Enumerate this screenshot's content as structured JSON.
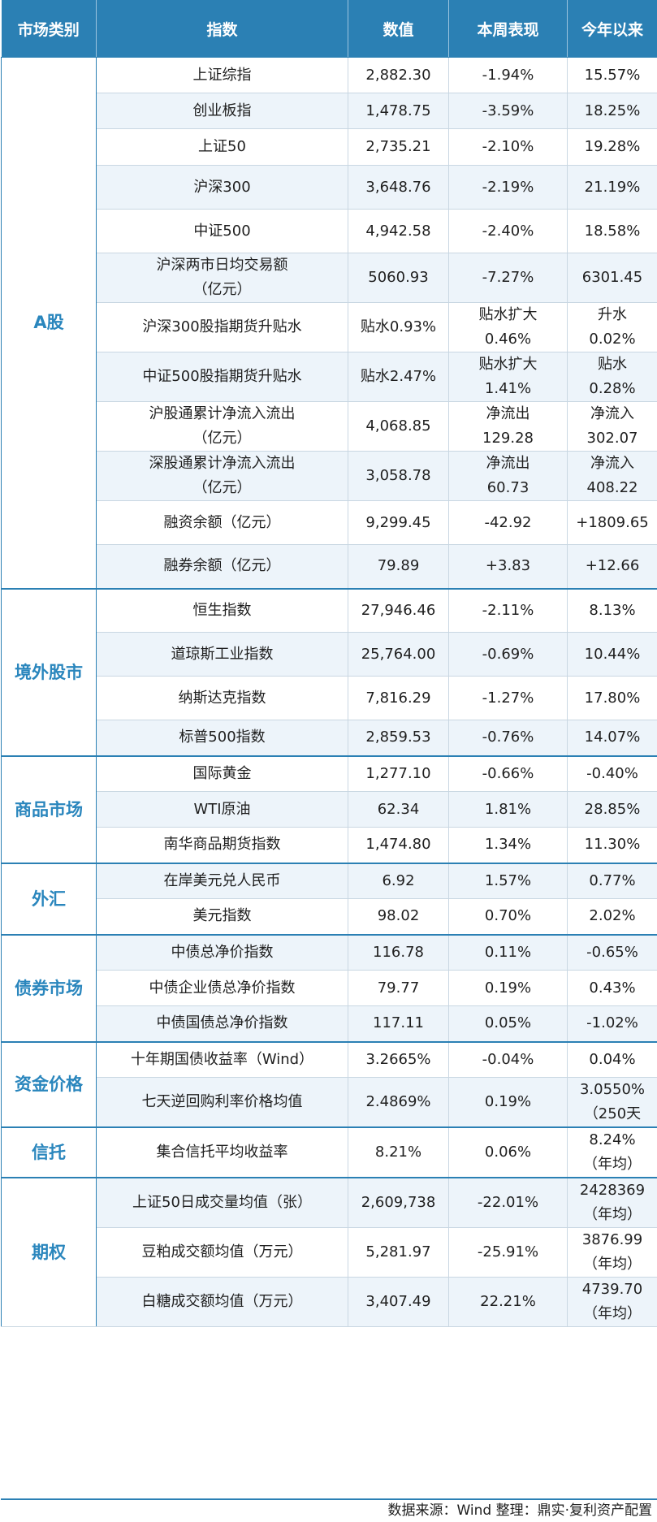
{
  "headers": [
    "市场类别",
    "指数",
    "数值",
    "本周表现",
    "今年以来"
  ],
  "groups": [
    {
      "category": "A股",
      "rows": [
        {
          "name": [
            "上证综指"
          ],
          "value": [
            "2,882.30"
          ],
          "week": [
            "-1.94%"
          ],
          "ytd": [
            "15.57%"
          ]
        },
        {
          "name": [
            "创业板指"
          ],
          "value": [
            "1,478.75"
          ],
          "week": [
            "-3.59%"
          ],
          "ytd": [
            "18.25%"
          ]
        },
        {
          "name": [
            "上证50"
          ],
          "value": [
            "2,735.21"
          ],
          "week": [
            "-2.10%"
          ],
          "ytd": [
            "19.28%"
          ]
        },
        {
          "name": [
            "沪深300"
          ],
          "value": [
            "3,648.76"
          ],
          "week": [
            "-2.19%"
          ],
          "ytd": [
            "21.19%"
          ]
        },
        {
          "name": [
            "中证500"
          ],
          "value": [
            "4,942.58"
          ],
          "week": [
            "-2.40%"
          ],
          "ytd": [
            "18.58%"
          ]
        },
        {
          "name": [
            "沪深两市日均交易额",
            "（亿元）"
          ],
          "value": [
            "5060.93"
          ],
          "week": [
            "-7.27%"
          ],
          "ytd": [
            "6301.45"
          ]
        },
        {
          "name": [
            "沪深300股指期货升贴水"
          ],
          "value": [
            "贴水0.93%"
          ],
          "week": [
            "贴水扩大",
            "0.46%"
          ],
          "ytd": [
            "升水",
            "0.02%"
          ]
        },
        {
          "name": [
            "中证500股指期货升贴水"
          ],
          "value": [
            "贴水2.47%"
          ],
          "week": [
            "贴水扩大",
            "1.41%"
          ],
          "ytd": [
            "贴水",
            "0.28%"
          ]
        },
        {
          "name": [
            "沪股通累计净流入流出",
            "（亿元）"
          ],
          "value": [
            "4,068.85"
          ],
          "week": [
            "净流出",
            "129.28"
          ],
          "ytd": [
            "净流入",
            "302.07"
          ]
        },
        {
          "name": [
            "深股通累计净流入流出",
            "（亿元）"
          ],
          "value": [
            "3,058.78"
          ],
          "week": [
            "净流出",
            "60.73"
          ],
          "ytd": [
            "净流入",
            "408.22"
          ]
        },
        {
          "name": [
            "融资余额（亿元）"
          ],
          "value": [
            "9,299.45"
          ],
          "week": [
            "-42.92"
          ],
          "ytd": [
            "+1809.65"
          ]
        },
        {
          "name": [
            "融券余额（亿元）"
          ],
          "value": [
            "79.89"
          ],
          "week": [
            "+3.83"
          ],
          "ytd": [
            "+12.66"
          ]
        }
      ]
    },
    {
      "category": "境外股市",
      "rows": [
        {
          "name": [
            "恒生指数"
          ],
          "value": [
            "27,946.46"
          ],
          "week": [
            "-2.11%"
          ],
          "ytd": [
            "8.13%"
          ]
        },
        {
          "name": [
            "道琼斯工业指数"
          ],
          "value": [
            "25,764.00"
          ],
          "week": [
            "-0.69%"
          ],
          "ytd": [
            "10.44%"
          ]
        },
        {
          "name": [
            "纳斯达克指数"
          ],
          "value": [
            "7,816.29"
          ],
          "week": [
            "-1.27%"
          ],
          "ytd": [
            "17.80%"
          ]
        },
        {
          "name": [
            "标普500指数"
          ],
          "value": [
            "2,859.53"
          ],
          "week": [
            "-0.76%"
          ],
          "ytd": [
            "14.07%"
          ]
        }
      ]
    },
    {
      "category": "商品市场",
      "rows": [
        {
          "name": [
            "国际黄金"
          ],
          "value": [
            "1,277.10"
          ],
          "week": [
            "-0.66%"
          ],
          "ytd": [
            "-0.40%"
          ]
        },
        {
          "name": [
            "WTI原油"
          ],
          "value": [
            "62.34"
          ],
          "week": [
            "1.81%"
          ],
          "ytd": [
            "28.85%"
          ]
        },
        {
          "name": [
            "南华商品期货指数"
          ],
          "value": [
            "1,474.80"
          ],
          "week": [
            "1.34%"
          ],
          "ytd": [
            "11.30%"
          ]
        }
      ]
    },
    {
      "category": "外汇",
      "rows": [
        {
          "name": [
            "在岸美元兑人民币"
          ],
          "value": [
            "6.92"
          ],
          "week": [
            "1.57%"
          ],
          "ytd": [
            "0.77%"
          ]
        },
        {
          "name": [
            "美元指数"
          ],
          "value": [
            "98.02"
          ],
          "week": [
            "0.70%"
          ],
          "ytd": [
            "2.02%"
          ]
        }
      ]
    },
    {
      "category": "债券市场",
      "rows": [
        {
          "name": [
            "中债总净价指数"
          ],
          "value": [
            "116.78"
          ],
          "week": [
            "0.11%"
          ],
          "ytd": [
            "-0.65%"
          ]
        },
        {
          "name": [
            "中债企业债总净价指数"
          ],
          "value": [
            "79.77"
          ],
          "week": [
            "0.19%"
          ],
          "ytd": [
            "0.43%"
          ]
        },
        {
          "name": [
            "中债国债总净价指数"
          ],
          "value": [
            "117.11"
          ],
          "week": [
            "0.05%"
          ],
          "ytd": [
            "-1.02%"
          ]
        }
      ]
    },
    {
      "category": "资金价格",
      "rows": [
        {
          "name": [
            "十年期国债收益率（Wind）"
          ],
          "value": [
            "3.2665%"
          ],
          "week": [
            "-0.04%"
          ],
          "ytd": [
            "0.04%"
          ]
        },
        {
          "name": [
            "七天逆回购利率价格均值"
          ],
          "value": [
            "2.4869%"
          ],
          "week": [
            "0.19%"
          ],
          "ytd": [
            "3.0550%",
            "（250天"
          ]
        }
      ]
    },
    {
      "category": "信托",
      "rows": [
        {
          "name": [
            "集合信托平均收益率"
          ],
          "value": [
            "8.21%"
          ],
          "week": [
            "0.06%"
          ],
          "ytd": [
            "8.24%",
            "（年均）"
          ]
        }
      ]
    },
    {
      "category": "期权",
      "rows": [
        {
          "name": [
            "上证50日成交量均值（张）"
          ],
          "value": [
            "2,609,738"
          ],
          "week": [
            "-22.01%"
          ],
          "ytd": [
            "2428369",
            "（年均）"
          ]
        },
        {
          "name": [
            "豆粕成交额均值（万元）"
          ],
          "value": [
            "5,281.97"
          ],
          "week": [
            "-25.91%"
          ],
          "ytd": [
            "3876.99",
            "（年均）"
          ]
        },
        {
          "name": [
            "白糖成交额均值（万元）"
          ],
          "value": [
            "3,407.49"
          ],
          "week": [
            "22.21%"
          ],
          "ytd": [
            "4739.70",
            "（年均）"
          ]
        }
      ]
    }
  ],
  "footer": "数据来源：Wind  整理：鼎实·复利资产配置"
}
